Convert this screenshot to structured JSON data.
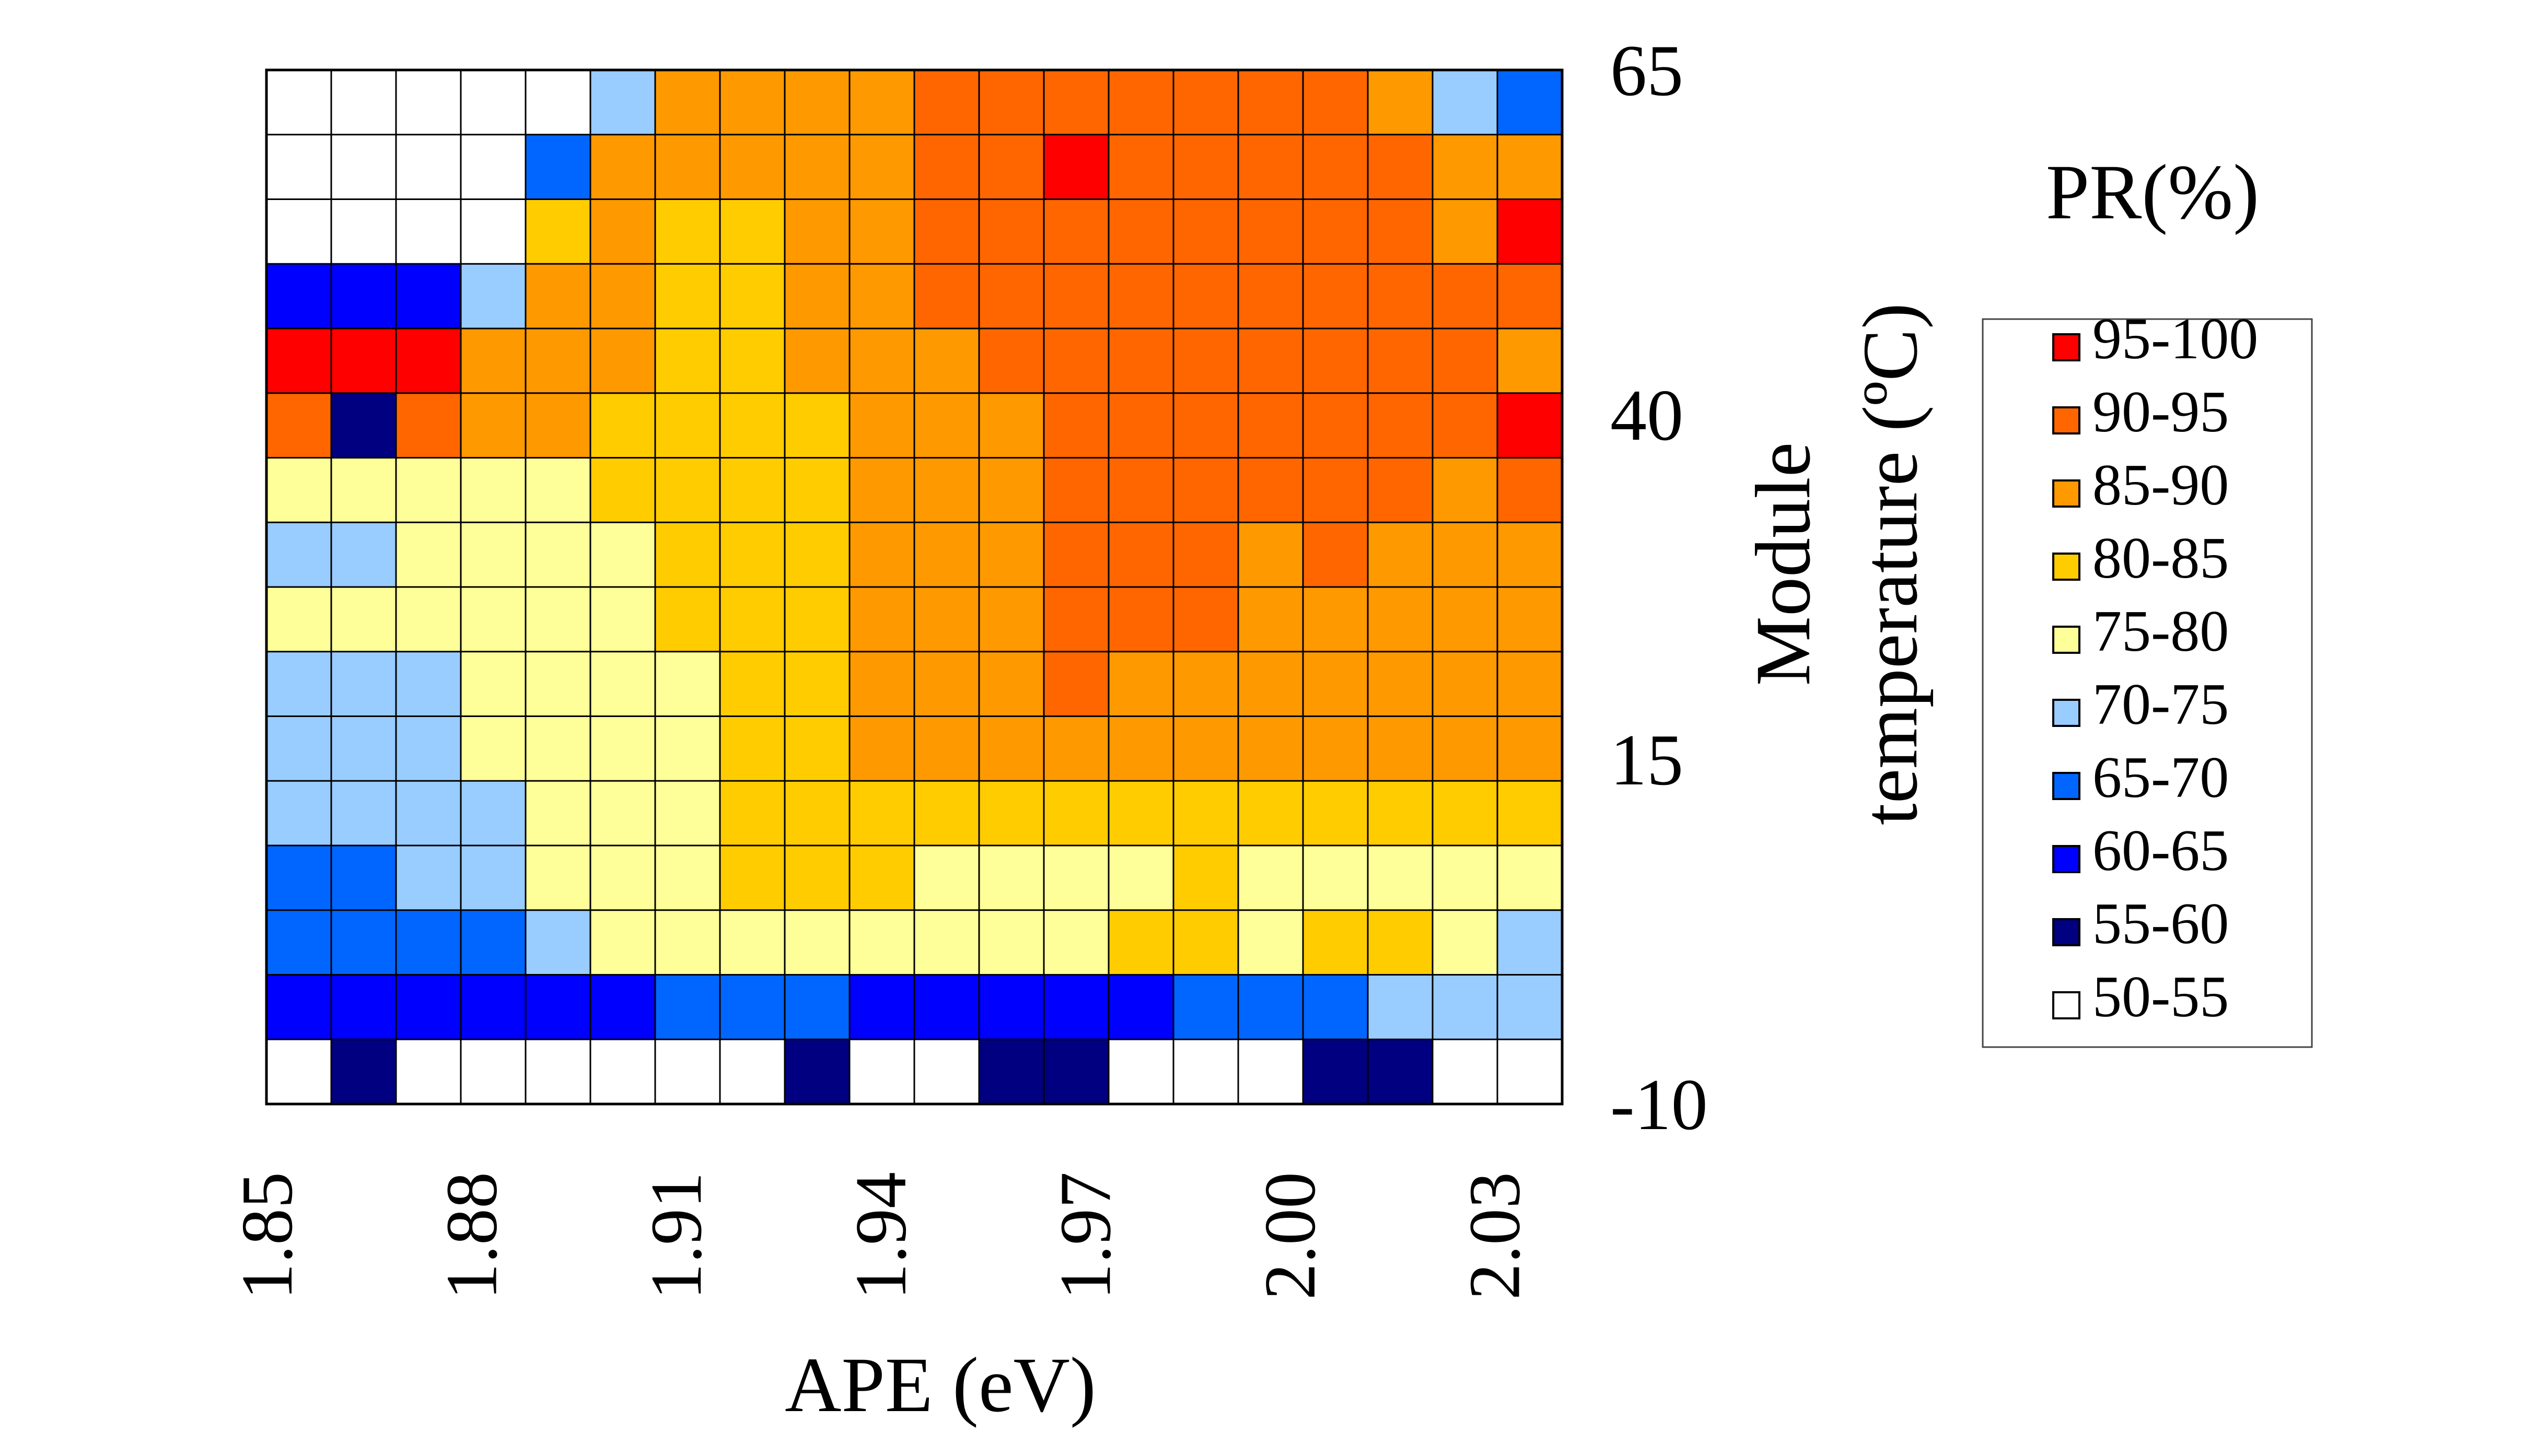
{
  "chart_data": {
    "type": "heatmap",
    "title": "",
    "xlabel": "APE (eV)",
    "ylabel_lines": [
      "Module",
      "temperature (ºC)"
    ],
    "x_ticks": [
      "1.85",
      "1.88",
      "1.91",
      "1.94",
      "1.97",
      "2.00",
      "2.03"
    ],
    "y_ticks": [
      "65",
      "40",
      "15",
      "-10"
    ],
    "x_range": [
      1.85,
      2.04
    ],
    "y_range": [
      -10,
      65
    ],
    "x_step": 0.01,
    "y_step": 5,
    "legend_title": "PR(%)",
    "legend_position": "right",
    "grid": true,
    "levels": [
      {
        "label": "95-100",
        "min": 95,
        "color": "#ff0000"
      },
      {
        "label": "90-95",
        "min": 90,
        "color": "#ff6600"
      },
      {
        "label": "85-90",
        "min": 85,
        "color": "#ff9900"
      },
      {
        "label": "80-85",
        "min": 80,
        "color": "#ffcc00"
      },
      {
        "label": "75-80",
        "min": 75,
        "color": "#ffff99"
      },
      {
        "label": "70-75",
        "min": 70,
        "color": "#99ccff"
      },
      {
        "label": "65-70",
        "min": 65,
        "color": "#0066ff"
      },
      {
        "label": "60-65",
        "min": 60,
        "color": "#0000ff"
      },
      {
        "label": "55-60",
        "min": 55,
        "color": "#000080"
      },
      {
        "label": "50-55",
        "min": 50,
        "color": "#ffffff"
      }
    ],
    "y_values": [
      65,
      60,
      55,
      50,
      45,
      40,
      35,
      30,
      25,
      20,
      15,
      10,
      5,
      0,
      -5,
      -10
    ],
    "x_values": [
      1.85,
      1.86,
      1.87,
      1.88,
      1.89,
      1.9,
      1.91,
      1.92,
      1.93,
      1.94,
      1.95,
      1.96,
      1.97,
      1.98,
      1.99,
      2.0,
      2.01,
      2.02,
      2.03,
      2.04
    ],
    "z_description": "PR (%) per cell, rows from 65 ºC (top) down to -10 ºC, columns from 1.85 to 2.04 eV",
    "z": [
      [
        52,
        52,
        52,
        52,
        52,
        72,
        88,
        86,
        86,
        89,
        91,
        92,
        94,
        93,
        91,
        91,
        91,
        86,
        70,
        66
      ],
      [
        52,
        52,
        52,
        52,
        68,
        88,
        88,
        86,
        86,
        89,
        91,
        92,
        96,
        94,
        91,
        91,
        91,
        91,
        89,
        89
      ],
      [
        52,
        52,
        52,
        52,
        84,
        86,
        84,
        83,
        86,
        89,
        91,
        92,
        92,
        92,
        91,
        91,
        91,
        91,
        89,
        96
      ],
      [
        62,
        62,
        62,
        72,
        88,
        87,
        84,
        83,
        86,
        89,
        91,
        91,
        91,
        91,
        91,
        91,
        91,
        93,
        91,
        91
      ],
      [
        96,
        96,
        96,
        89,
        88,
        87,
        84,
        83,
        86,
        89,
        89,
        91,
        91,
        91,
        91,
        91,
        91,
        91,
        91,
        89
      ],
      [
        91,
        58,
        91,
        88,
        86,
        84,
        82,
        83,
        84,
        89,
        89,
        89,
        91,
        91,
        91,
        91,
        91,
        91,
        91,
        96
      ],
      [
        78,
        78,
        78,
        78,
        77,
        82,
        82,
        82,
        84,
        86,
        89,
        89,
        91,
        91,
        91,
        91,
        91,
        91,
        89,
        91
      ],
      [
        72,
        73,
        78,
        78,
        78,
        79,
        82,
        82,
        84,
        86,
        89,
        89,
        91,
        91,
        91,
        89,
        91,
        89,
        89,
        89
      ],
      [
        77,
        77,
        77,
        78,
        78,
        78,
        80,
        82,
        84,
        86,
        89,
        89,
        91,
        91,
        91,
        89,
        89,
        89,
        89,
        89
      ],
      [
        73,
        73,
        73,
        78,
        78,
        78,
        78,
        82,
        84,
        86,
        89,
        89,
        91,
        89,
        89,
        89,
        89,
        89,
        89,
        89
      ],
      [
        72,
        72,
        72,
        77,
        78,
        78,
        78,
        82,
        84,
        86,
        86,
        86,
        86,
        87,
        87,
        87,
        86,
        86,
        86,
        86
      ],
      [
        72,
        72,
        72,
        72,
        77,
        78,
        78,
        82,
        82,
        84,
        83,
        82,
        82,
        82,
        82,
        82,
        82,
        82,
        84,
        84
      ],
      [
        67,
        68,
        70,
        72,
        76,
        78,
        78,
        82,
        82,
        82,
        78,
        77,
        78,
        78,
        82,
        77,
        78,
        78,
        78,
        77
      ],
      [
        66,
        67,
        66,
        66,
        74,
        77,
        78,
        78,
        77,
        78,
        77,
        77,
        76,
        82,
        82,
        77,
        82,
        82,
        78,
        74
      ],
      [
        60,
        60,
        60,
        60,
        61,
        63,
        66,
        66,
        66,
        64,
        64,
        62,
        61,
        62,
        66,
        66,
        68,
        72,
        74,
        70
      ],
      [
        52,
        56,
        52,
        52,
        52,
        52,
        52,
        52,
        56,
        52,
        52,
        56,
        56,
        52,
        52,
        52,
        56,
        56,
        52,
        54
      ]
    ]
  }
}
